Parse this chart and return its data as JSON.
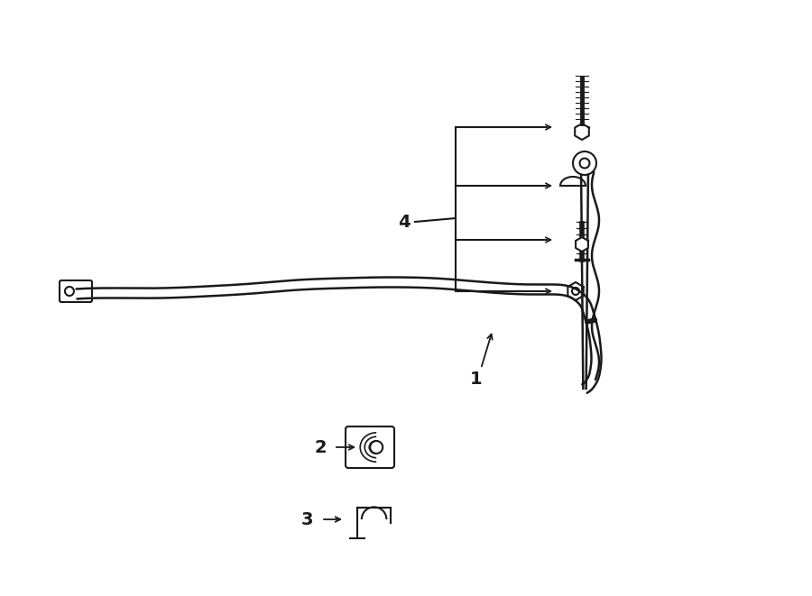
{
  "bg_color": "#ffffff",
  "line_color": "#1a1a1a",
  "figsize": [
    9.0,
    6.61
  ],
  "dpi": 100,
  "label1": "1",
  "label2": "2",
  "label3": "3",
  "label4": "4"
}
